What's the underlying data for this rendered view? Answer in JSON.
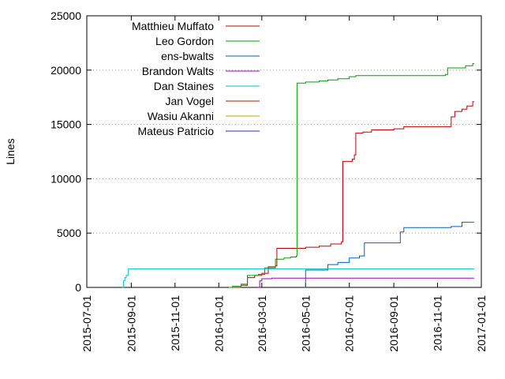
{
  "chart_data": {
    "type": "line",
    "title": "",
    "xlabel": "",
    "ylabel": "Lines",
    "x_type": "date",
    "xlim": [
      "2015-07-01",
      "2017-01-01"
    ],
    "ylim": [
      0,
      25000
    ],
    "x_ticks": [
      "2015-07-01",
      "2015-09-01",
      "2015-11-01",
      "2016-01-01",
      "2016-03-01",
      "2016-05-01",
      "2016-07-01",
      "2016-09-01",
      "2016-11-01",
      "2017-01-01"
    ],
    "y_ticks": [
      0,
      5000,
      10000,
      15000,
      20000,
      25000
    ],
    "grid": "y-dotted",
    "legend_position": "top-left",
    "series": [
      {
        "name": "Matthieu Muffato",
        "color": "#c00000",
        "step": true,
        "points": [
          [
            "2016-01-20",
            0
          ],
          [
            "2016-02-01",
            200
          ],
          [
            "2016-02-10",
            900
          ],
          [
            "2016-02-20",
            1100
          ],
          [
            "2016-03-01",
            1300
          ],
          [
            "2016-03-10",
            1900
          ],
          [
            "2016-03-20",
            2000
          ],
          [
            "2016-03-22",
            3600
          ],
          [
            "2016-04-10",
            3600
          ],
          [
            "2016-05-01",
            3700
          ],
          [
            "2016-05-20",
            3800
          ],
          [
            "2016-06-05",
            4000
          ],
          [
            "2016-06-20",
            4200
          ],
          [
            "2016-06-22",
            11600
          ],
          [
            "2016-07-05",
            11800
          ],
          [
            "2016-07-08",
            12200
          ],
          [
            "2016-07-10",
            14200
          ],
          [
            "2016-07-20",
            14300
          ],
          [
            "2016-08-01",
            14500
          ],
          [
            "2016-09-01",
            14600
          ],
          [
            "2016-09-15",
            14800
          ],
          [
            "2016-11-15",
            14800
          ],
          [
            "2016-11-20",
            15700
          ],
          [
            "2016-11-25",
            16200
          ],
          [
            "2016-12-05",
            16400
          ],
          [
            "2016-12-12",
            16700
          ],
          [
            "2016-12-20",
            17100
          ],
          [
            "2016-12-22",
            17100
          ]
        ]
      },
      {
        "name": "Leo Gordon",
        "color": "#00a000",
        "step": true,
        "points": [
          [
            "2016-01-15",
            0
          ],
          [
            "2016-01-20",
            100
          ],
          [
            "2016-02-01",
            300
          ],
          [
            "2016-02-10",
            1100
          ],
          [
            "2016-02-25",
            1200
          ],
          [
            "2016-03-05",
            1800
          ],
          [
            "2016-03-20",
            2600
          ],
          [
            "2016-04-01",
            2700
          ],
          [
            "2016-04-10",
            2800
          ],
          [
            "2016-04-18",
            2900
          ],
          [
            "2016-04-19",
            18800
          ],
          [
            "2016-05-01",
            18900
          ],
          [
            "2016-05-20",
            19000
          ],
          [
            "2016-06-01",
            19100
          ],
          [
            "2016-06-15",
            19200
          ],
          [
            "2016-07-01",
            19400
          ],
          [
            "2016-07-10",
            19500
          ],
          [
            "2016-08-01",
            19500
          ],
          [
            "2016-11-12",
            19600
          ],
          [
            "2016-11-15",
            20200
          ],
          [
            "2016-12-10",
            20400
          ],
          [
            "2016-12-20",
            20600
          ],
          [
            "2016-12-22",
            20600
          ]
        ]
      },
      {
        "name": "ens-bwalts",
        "color": "#0060c0",
        "step": true,
        "points": [
          [
            "2016-04-30",
            0
          ],
          [
            "2016-05-01",
            1600
          ],
          [
            "2016-06-01",
            2100
          ],
          [
            "2016-06-15",
            2300
          ],
          [
            "2016-07-01",
            2700
          ],
          [
            "2016-07-15",
            2900
          ],
          [
            "2016-07-22",
            4100
          ],
          [
            "2016-09-05",
            4100
          ],
          [
            "2016-09-10",
            5100
          ],
          [
            "2016-09-15",
            5500
          ],
          [
            "2016-10-01",
            5500
          ],
          [
            "2016-11-20",
            5600
          ],
          [
            "2016-12-05",
            6000
          ],
          [
            "2016-12-22",
            6000
          ]
        ]
      },
      {
        "name": "Brandon Walts",
        "color": "#a000c0",
        "step": true,
        "points": [
          [
            "2016-02-25",
            0
          ],
          [
            "2016-02-27",
            600
          ],
          [
            "2016-03-01",
            800
          ],
          [
            "2016-03-15",
            850
          ],
          [
            "2016-12-22",
            850
          ]
        ]
      },
      {
        "name": "Dan Staines",
        "color": "#00c0c0",
        "step": true,
        "points": [
          [
            "2015-08-20",
            0
          ],
          [
            "2015-08-21",
            600
          ],
          [
            "2015-08-23",
            900
          ],
          [
            "2015-08-25",
            1100
          ],
          [
            "2015-08-28",
            1700
          ],
          [
            "2016-12-22",
            1700
          ]
        ]
      },
      {
        "name": "Jan Vogel",
        "color": "#a02000",
        "step": true,
        "points": []
      },
      {
        "name": "Wasiu Akanni",
        "color": "#c0a000",
        "step": true,
        "points": []
      },
      {
        "name": "Mateus Patricio",
        "color": "#2030c0",
        "step": true,
        "points": []
      }
    ]
  }
}
